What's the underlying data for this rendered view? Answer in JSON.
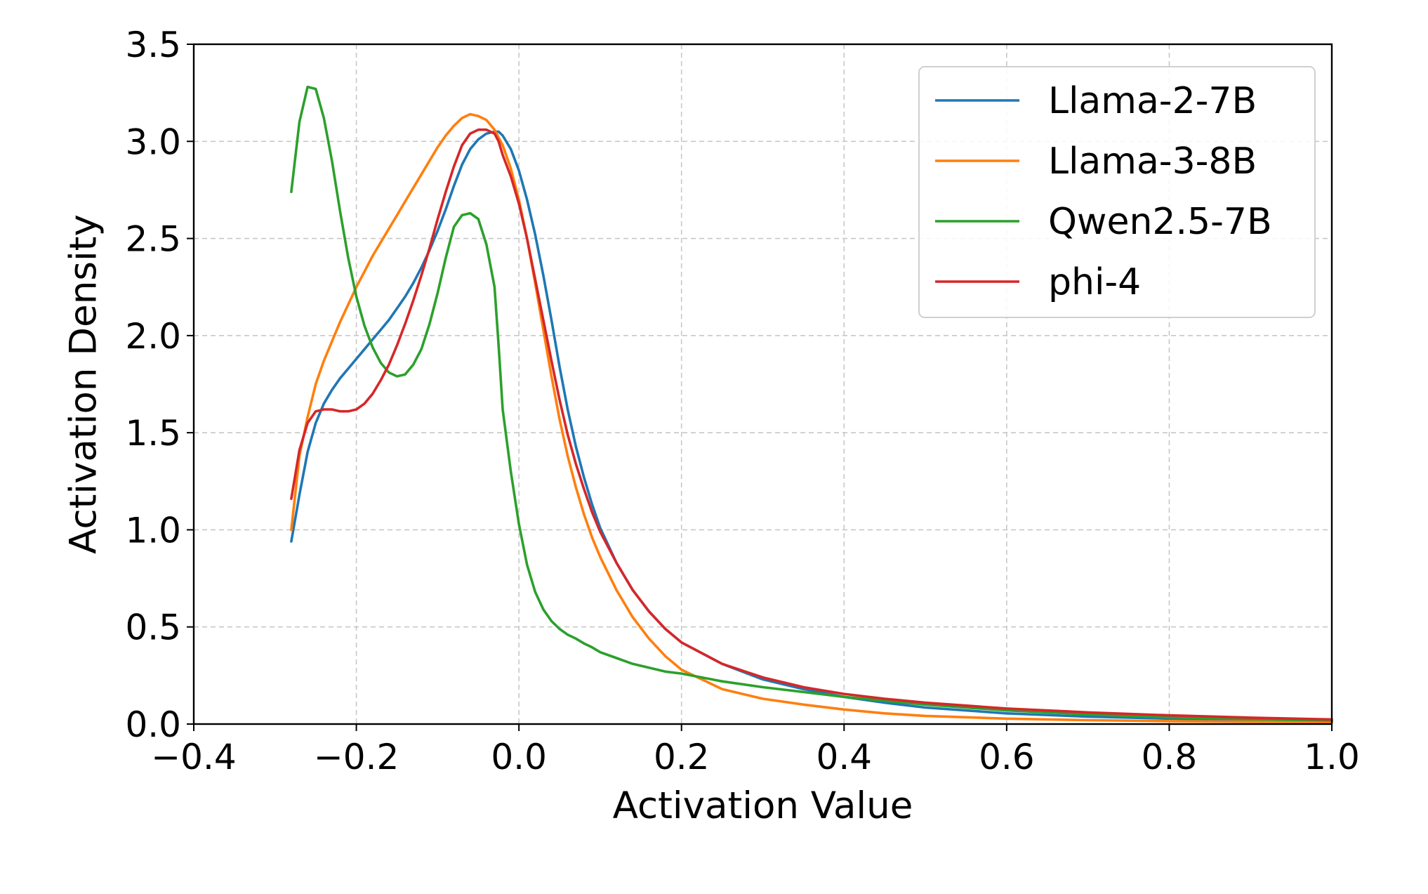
{
  "chart_data": {
    "type": "line",
    "title": "",
    "xlabel": "Activation Value",
    "ylabel": "Activation Density",
    "xlim": [
      -0.4,
      1.0
    ],
    "ylim": [
      0.0,
      3.5
    ],
    "xticks": [
      -0.4,
      -0.2,
      0.0,
      0.2,
      0.4,
      0.6,
      0.8,
      1.0
    ],
    "xtick_labels": [
      "−0.4",
      "−0.2",
      "0.0",
      "0.2",
      "0.4",
      "0.6",
      "0.8",
      "1.0"
    ],
    "yticks": [
      0.0,
      0.5,
      1.0,
      1.5,
      2.0,
      2.5,
      3.0,
      3.5
    ],
    "ytick_labels": [
      "0.0",
      "0.5",
      "1.0",
      "1.5",
      "2.0",
      "2.5",
      "3.0",
      "3.5"
    ],
    "grid": true,
    "legend_position": "top-right",
    "series": [
      {
        "name": "Llama-2-7B",
        "color": "#1f77b4",
        "x": [
          -0.28,
          -0.27,
          -0.26,
          -0.25,
          -0.24,
          -0.23,
          -0.22,
          -0.21,
          -0.2,
          -0.19,
          -0.18,
          -0.17,
          -0.16,
          -0.15,
          -0.14,
          -0.13,
          -0.12,
          -0.11,
          -0.1,
          -0.09,
          -0.08,
          -0.07,
          -0.06,
          -0.05,
          -0.04,
          -0.03,
          -0.025,
          -0.02,
          -0.01,
          0.0,
          0.01,
          0.02,
          0.03,
          0.04,
          0.05,
          0.06,
          0.07,
          0.08,
          0.09,
          0.1,
          0.12,
          0.14,
          0.16,
          0.18,
          0.2,
          0.25,
          0.3,
          0.35,
          0.4,
          0.45,
          0.5,
          0.6,
          0.7,
          0.8,
          0.9,
          1.0
        ],
        "y": [
          0.94,
          1.18,
          1.4,
          1.55,
          1.65,
          1.72,
          1.78,
          1.83,
          1.88,
          1.93,
          1.98,
          2.03,
          2.08,
          2.14,
          2.2,
          2.27,
          2.35,
          2.44,
          2.54,
          2.65,
          2.77,
          2.88,
          2.96,
          3.01,
          3.04,
          3.05,
          3.05,
          3.03,
          2.96,
          2.85,
          2.7,
          2.52,
          2.31,
          2.08,
          1.84,
          1.62,
          1.43,
          1.27,
          1.13,
          1.01,
          0.83,
          0.69,
          0.58,
          0.49,
          0.42,
          0.31,
          0.23,
          0.18,
          0.14,
          0.11,
          0.085,
          0.055,
          0.038,
          0.028,
          0.02,
          0.016
        ]
      },
      {
        "name": "Llama-3-8B",
        "color": "#ff7f0e",
        "x": [
          -0.28,
          -0.27,
          -0.26,
          -0.25,
          -0.24,
          -0.23,
          -0.22,
          -0.21,
          -0.2,
          -0.19,
          -0.18,
          -0.17,
          -0.16,
          -0.15,
          -0.14,
          -0.13,
          -0.12,
          -0.11,
          -0.1,
          -0.09,
          -0.08,
          -0.07,
          -0.06,
          -0.05,
          -0.04,
          -0.03,
          -0.02,
          -0.01,
          0.0,
          0.01,
          0.02,
          0.03,
          0.04,
          0.05,
          0.06,
          0.07,
          0.08,
          0.09,
          0.1,
          0.12,
          0.14,
          0.16,
          0.18,
          0.2,
          0.25,
          0.3,
          0.35,
          0.4,
          0.45,
          0.5,
          0.6,
          0.7,
          0.8,
          0.9,
          1.0
        ],
        "y": [
          1.0,
          1.38,
          1.58,
          1.75,
          1.87,
          1.97,
          2.07,
          2.16,
          2.25,
          2.33,
          2.41,
          2.48,
          2.55,
          2.62,
          2.69,
          2.76,
          2.83,
          2.9,
          2.97,
          3.03,
          3.08,
          3.12,
          3.14,
          3.13,
          3.11,
          3.06,
          2.98,
          2.86,
          2.7,
          2.5,
          2.27,
          2.03,
          1.79,
          1.57,
          1.38,
          1.22,
          1.08,
          0.96,
          0.86,
          0.69,
          0.55,
          0.44,
          0.35,
          0.28,
          0.18,
          0.13,
          0.1,
          0.075,
          0.055,
          0.042,
          0.028,
          0.02,
          0.015,
          0.012,
          0.01
        ]
      },
      {
        "name": "Qwen2.5-7B",
        "color": "#2ca02c",
        "x": [
          -0.28,
          -0.27,
          -0.26,
          -0.25,
          -0.24,
          -0.23,
          -0.22,
          -0.21,
          -0.2,
          -0.19,
          -0.18,
          -0.17,
          -0.16,
          -0.15,
          -0.14,
          -0.13,
          -0.12,
          -0.11,
          -0.1,
          -0.09,
          -0.08,
          -0.07,
          -0.06,
          -0.05,
          -0.04,
          -0.03,
          -0.025,
          -0.02,
          -0.01,
          0.0,
          0.01,
          0.02,
          0.03,
          0.04,
          0.05,
          0.06,
          0.07,
          0.08,
          0.09,
          0.1,
          0.12,
          0.14,
          0.16,
          0.18,
          0.2,
          0.25,
          0.3,
          0.35,
          0.4,
          0.45,
          0.5,
          0.6,
          0.7,
          0.8,
          0.9,
          1.0
        ],
        "y": [
          2.74,
          3.1,
          3.28,
          3.27,
          3.12,
          2.9,
          2.64,
          2.4,
          2.2,
          2.05,
          1.94,
          1.86,
          1.81,
          1.79,
          1.8,
          1.85,
          1.93,
          2.06,
          2.22,
          2.4,
          2.56,
          2.62,
          2.63,
          2.6,
          2.47,
          2.25,
          1.95,
          1.62,
          1.3,
          1.03,
          0.82,
          0.68,
          0.59,
          0.53,
          0.49,
          0.46,
          0.44,
          0.415,
          0.395,
          0.37,
          0.34,
          0.31,
          0.29,
          0.27,
          0.26,
          0.22,
          0.19,
          0.165,
          0.14,
          0.12,
          0.1,
          0.07,
          0.05,
          0.035,
          0.025,
          0.018
        ]
      },
      {
        "name": "phi-4",
        "color": "#d62728",
        "x": [
          -0.28,
          -0.27,
          -0.26,
          -0.25,
          -0.24,
          -0.23,
          -0.22,
          -0.21,
          -0.2,
          -0.19,
          -0.18,
          -0.17,
          -0.16,
          -0.15,
          -0.14,
          -0.13,
          -0.12,
          -0.11,
          -0.1,
          -0.09,
          -0.08,
          -0.07,
          -0.06,
          -0.05,
          -0.04,
          -0.03,
          -0.025,
          -0.02,
          -0.01,
          0.0,
          0.01,
          0.02,
          0.03,
          0.04,
          0.05,
          0.06,
          0.07,
          0.08,
          0.09,
          0.1,
          0.12,
          0.14,
          0.16,
          0.18,
          0.2,
          0.25,
          0.3,
          0.35,
          0.4,
          0.45,
          0.5,
          0.6,
          0.7,
          0.8,
          0.9,
          1.0
        ],
        "y": [
          1.16,
          1.41,
          1.55,
          1.61,
          1.62,
          1.62,
          1.61,
          1.61,
          1.62,
          1.65,
          1.7,
          1.77,
          1.85,
          1.95,
          2.06,
          2.18,
          2.31,
          2.45,
          2.6,
          2.74,
          2.87,
          2.98,
          3.04,
          3.06,
          3.06,
          3.04,
          3.0,
          2.93,
          2.82,
          2.68,
          2.5,
          2.29,
          2.08,
          1.87,
          1.67,
          1.49,
          1.34,
          1.21,
          1.09,
          0.99,
          0.83,
          0.69,
          0.58,
          0.49,
          0.42,
          0.31,
          0.24,
          0.19,
          0.155,
          0.13,
          0.11,
          0.08,
          0.06,
          0.045,
          0.033,
          0.024
        ]
      }
    ]
  }
}
